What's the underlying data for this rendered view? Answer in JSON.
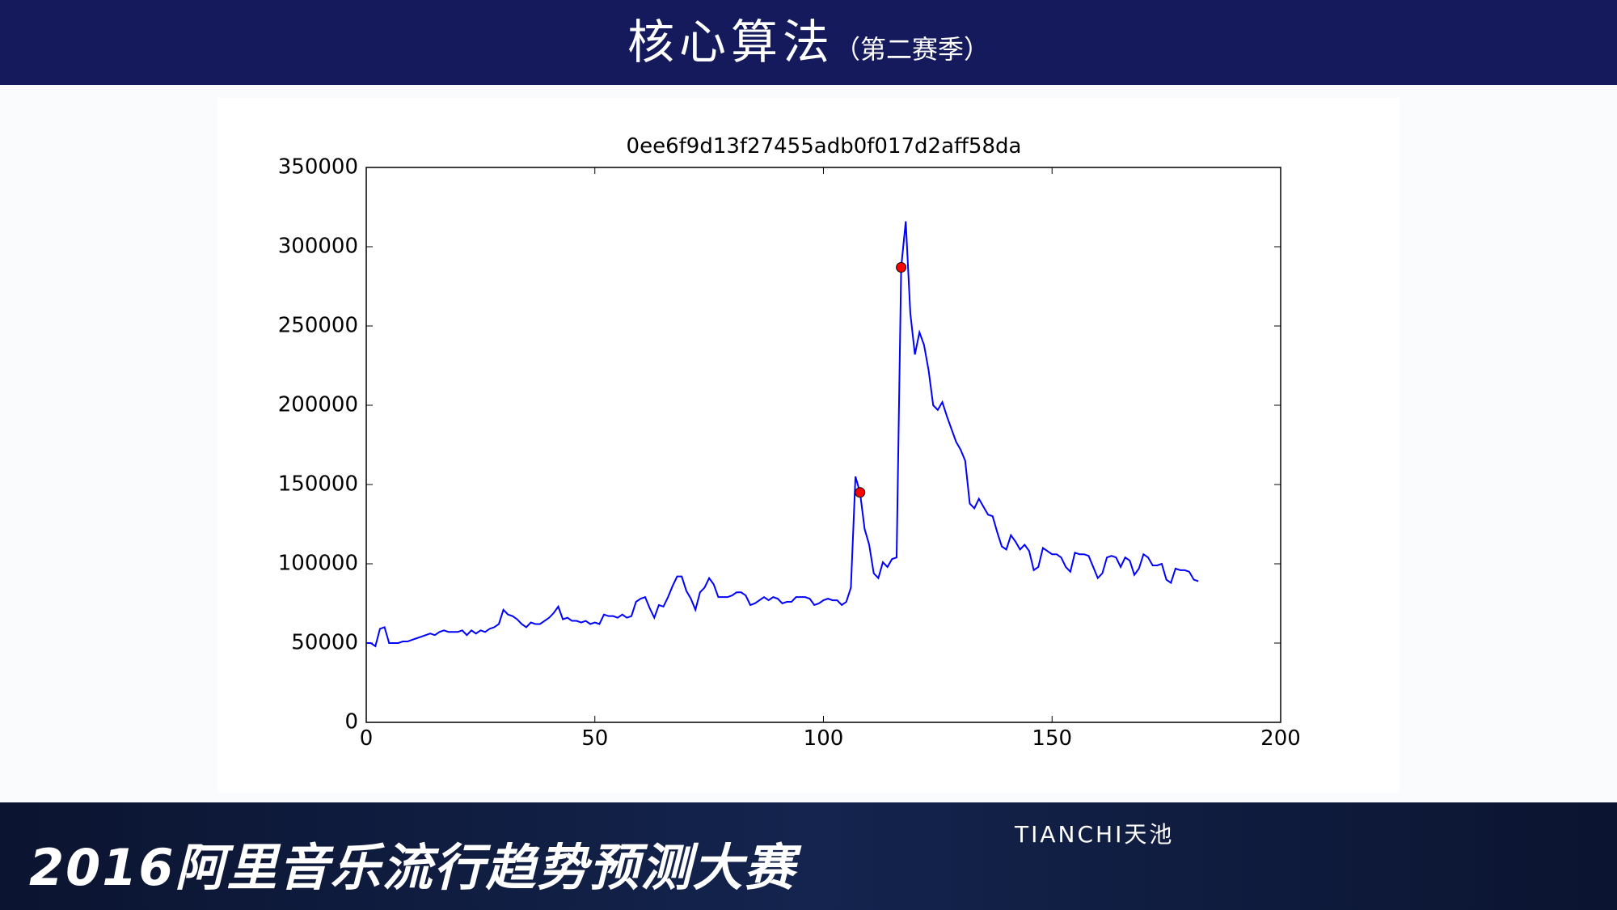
{
  "header": {
    "title": "核心算法",
    "subtitle": "（第二赛季）"
  },
  "footer": {
    "banner": "2016阿里音乐流行趋势预测大赛",
    "logo": "TIANCHI天池"
  },
  "chart_data": {
    "type": "line",
    "title": "0ee6f9d13f27455adb0f017d2aff58da",
    "color": "#0000ff",
    "x": [
      0,
      1,
      2,
      3,
      4,
      5,
      6,
      7,
      8,
      9,
      10,
      11,
      12,
      13,
      14,
      15,
      16,
      17,
      18,
      19,
      20,
      21,
      22,
      23,
      24,
      25,
      26,
      27,
      28,
      29,
      30,
      31,
      32,
      33,
      34,
      35,
      36,
      37,
      38,
      39,
      40,
      41,
      42,
      43,
      44,
      45,
      46,
      47,
      48,
      49,
      50,
      51,
      52,
      53,
      54,
      55,
      56,
      57,
      58,
      59,
      60,
      61,
      62,
      63,
      64,
      65,
      66,
      67,
      68,
      69,
      70,
      71,
      72,
      73,
      74,
      75,
      76,
      77,
      78,
      79,
      80,
      81,
      82,
      83,
      84,
      85,
      86,
      87,
      88,
      89,
      90,
      91,
      92,
      93,
      94,
      95,
      96,
      97,
      98,
      99,
      100,
      101,
      102,
      103,
      104,
      105,
      106,
      107,
      108,
      109,
      110,
      111,
      112,
      113,
      114,
      115,
      116,
      117,
      118,
      119,
      120,
      121,
      122,
      123,
      124,
      125,
      126,
      127,
      128,
      129,
      130,
      131,
      132,
      133,
      134,
      135,
      136,
      137,
      138,
      139,
      140,
      141,
      142,
      143,
      144,
      145,
      146,
      147,
      148,
      149,
      150,
      151,
      152,
      153,
      154,
      155,
      156,
      157,
      158,
      159,
      160,
      161,
      162,
      163,
      164,
      165,
      166,
      167,
      168,
      169,
      170,
      171,
      172,
      173,
      174,
      175,
      176,
      177,
      178,
      179,
      180,
      181,
      182
    ],
    "values": [
      50000,
      50000,
      48000,
      59000,
      60000,
      50000,
      50000,
      50000,
      51000,
      51000,
      52000,
      53000,
      54000,
      55000,
      56000,
      55000,
      57000,
      58000,
      57000,
      57000,
      57000,
      58000,
      55000,
      58000,
      56000,
      58000,
      57000,
      59000,
      60000,
      62000,
      71000,
      68000,
      67000,
      65000,
      62000,
      60000,
      63000,
      62000,
      62000,
      64000,
      66000,
      69000,
      73000,
      65000,
      66000,
      64000,
      64000,
      63000,
      64000,
      62000,
      63000,
      62000,
      68000,
      67000,
      67000,
      66000,
      68000,
      66000,
      67000,
      76000,
      78000,
      79000,
      72000,
      66000,
      74000,
      73000,
      79000,
      86000,
      92000,
      92000,
      83000,
      78000,
      71000,
      82000,
      85000,
      91000,
      87000,
      79000,
      79000,
      79000,
      80000,
      82000,
      82000,
      80000,
      74000,
      75000,
      77000,
      79000,
      77000,
      79000,
      78000,
      75000,
      76000,
      76000,
      79000,
      79000,
      79000,
      78000,
      74000,
      75000,
      77000,
      78000,
      77000,
      77000,
      74000,
      76000,
      85000,
      155000,
      145000,
      122000,
      112000,
      94000,
      91000,
      101000,
      98000,
      103000,
      104000,
      287000,
      316000,
      258000,
      232000,
      246000,
      238000,
      222000,
      200000,
      197000,
      202000,
      193000,
      185000,
      177000,
      172000,
      165000,
      138000,
      135000,
      141000,
      136000,
      131000,
      130000,
      120000,
      111000,
      109000,
      118000,
      114000,
      109000,
      112000,
      108000,
      96000,
      98000,
      110000,
      108000,
      106000,
      106000,
      104000,
      98000,
      95000,
      107000,
      106000,
      106000,
      105000,
      98000,
      91000,
      94000,
      104000,
      105000,
      104000,
      98000,
      104000,
      102000,
      93000,
      97000,
      106000,
      104000,
      99000,
      99000,
      100000,
      90000,
      88000,
      97000,
      96000,
      96000,
      95000,
      90000,
      89000
    ],
    "markers": {
      "x": [
        108,
        117
      ],
      "values": [
        145000,
        287000
      ],
      "color": "#ff0000"
    },
    "xlim": [
      0,
      200
    ],
    "xticks": [
      0,
      50,
      100,
      150,
      200
    ],
    "ylim": [
      0,
      350000
    ],
    "yticks": [
      0,
      50000,
      100000,
      150000,
      200000,
      250000,
      300000,
      350000
    ]
  }
}
